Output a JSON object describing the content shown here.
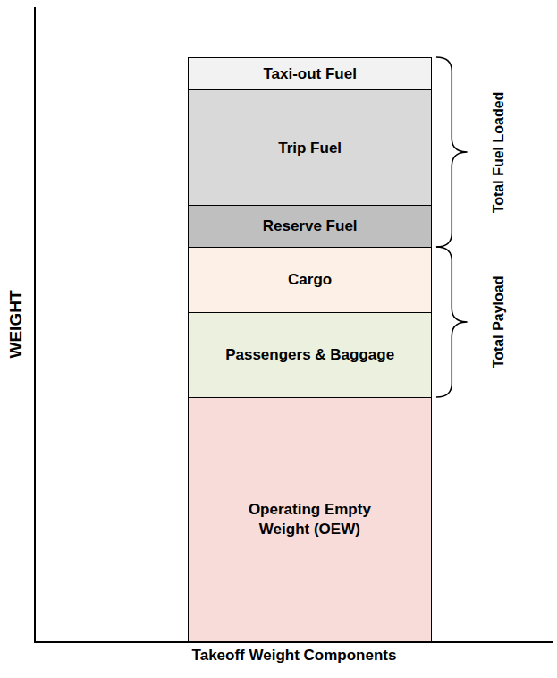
{
  "chart_data": {
    "type": "bar",
    "stacked": true,
    "xlabel": "Takeoff Weight Components",
    "ylabel": "WEIGHT",
    "categories": [
      null
    ],
    "ylim": [
      0,
      100
    ],
    "yticks": [],
    "tick_labels": false,
    "series": [
      {
        "name": "Operating Empty Weight (OEW)",
        "color": "#f8dcd9",
        "values": [
          38.5
        ]
      },
      {
        "name": "Passengers & Baggage",
        "color": "#ebf1de",
        "values": [
          13.4
        ]
      },
      {
        "name": "Cargo",
        "color": "#fdf0e6",
        "values": [
          10.3
        ]
      },
      {
        "name": "Reserve Fuel",
        "color": "#bfbfbf",
        "values": [
          6.5
        ]
      },
      {
        "name": "Trip Fuel",
        "color": "#d9d9d9",
        "values": [
          18.3
        ]
      },
      {
        "name": "Taxi-out Fuel",
        "color": "#f2f2f2",
        "values": [
          5.1
        ]
      }
    ],
    "brackets": [
      {
        "label": "Total Payload",
        "series": [
          "Passengers & Baggage",
          "Cargo"
        ]
      },
      {
        "label": "Total Fuel Loaded",
        "series": [
          "Reserve Fuel",
          "Trip Fuel",
          "Taxi-out Fuel"
        ]
      }
    ]
  }
}
